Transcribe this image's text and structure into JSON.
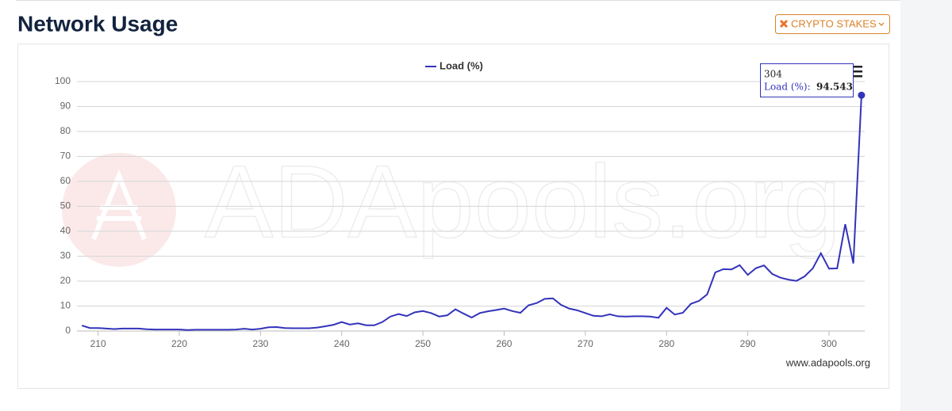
{
  "header": {
    "title": "Network Usage",
    "button": "CRYPTO STAKES"
  },
  "chart_data": {
    "type": "line",
    "legend": "top",
    "grid": true,
    "watermark": "ADApools.org",
    "credit": "www.adapools.org",
    "x": [
      208,
      209,
      210,
      211,
      212,
      213,
      214,
      215,
      216,
      217,
      218,
      219,
      220,
      221,
      222,
      223,
      224,
      225,
      226,
      227,
      228,
      229,
      230,
      231,
      232,
      233,
      234,
      235,
      236,
      237,
      238,
      239,
      240,
      241,
      242,
      243,
      244,
      245,
      246,
      247,
      248,
      249,
      250,
      251,
      252,
      253,
      254,
      255,
      256,
      257,
      258,
      259,
      260,
      261,
      262,
      263,
      264,
      265,
      266,
      267,
      268,
      269,
      270,
      271,
      272,
      273,
      274,
      275,
      276,
      277,
      278,
      279,
      280,
      281,
      282,
      283,
      284,
      285,
      286,
      287,
      288,
      289,
      290,
      291,
      292,
      293,
      294,
      295,
      296,
      297,
      298,
      299,
      300,
      301,
      302,
      303,
      304
    ],
    "series": [
      {
        "name": "Load (%)",
        "color": "#3333bb",
        "values": [
          2.2,
          1.2,
          1.2,
          1.0,
          0.8,
          1.0,
          1.0,
          1.0,
          0.7,
          0.6,
          0.6,
          0.6,
          0.6,
          0.4,
          0.5,
          0.5,
          0.5,
          0.5,
          0.5,
          0.6,
          0.9,
          0.6,
          0.9,
          1.5,
          1.6,
          1.2,
          1.1,
          1.1,
          1.1,
          1.4,
          1.9,
          2.5,
          3.6,
          2.6,
          3.1,
          2.3,
          2.3,
          3.6,
          5.8,
          6.8,
          6.0,
          7.5,
          8.0,
          7.2,
          5.8,
          6.3,
          8.7,
          7.0,
          5.4,
          7.2,
          7.9,
          8.4,
          9.0,
          8.0,
          7.3,
          10.3,
          11.2,
          12.9,
          13.1,
          10.5,
          9.0,
          8.3,
          7.2,
          6.1,
          5.9,
          6.7,
          5.9,
          5.8,
          5.9,
          5.9,
          5.8,
          5.3,
          9.3,
          6.6,
          7.3,
          10.9,
          12.1,
          14.7,
          23.5,
          24.8,
          24.7,
          26.4,
          22.5,
          25.2,
          26.3,
          22.9,
          21.4,
          20.6,
          20.1,
          21.9,
          25.1,
          31.2,
          25.0,
          25.1,
          42.8,
          27.1,
          94.543
        ]
      }
    ],
    "tooltip": {
      "label": "Load (%):"
    },
    "xlim": [
      207.4,
      304.4
    ],
    "xticks": [
      210,
      220,
      230,
      240,
      250,
      260,
      270,
      280,
      290,
      300
    ],
    "ylim": [
      0,
      100
    ],
    "yticks": [
      0,
      10,
      20,
      30,
      40,
      50,
      60,
      70,
      80,
      90,
      100
    ]
  }
}
